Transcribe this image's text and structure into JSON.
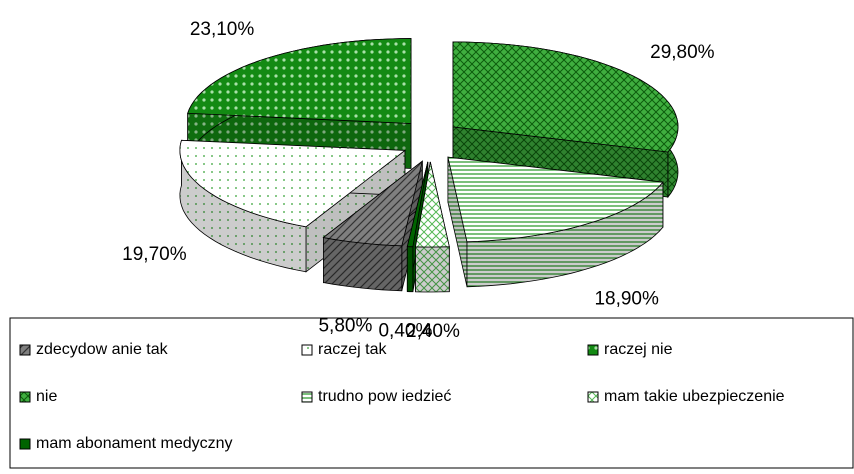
{
  "chart_data": {
    "type": "pie3d",
    "categories": [
      "zdecydow anie tak",
      "raczej tak",
      "raczej nie",
      "nie",
      "trudno pow iedzieć",
      "mam takie ubezpieczenie",
      "mam abonament medyczny"
    ],
    "values": [
      5.8,
      19.7,
      23.1,
      29.8,
      18.9,
      2.4,
      0.4
    ],
    "value_labels": [
      "5,80%",
      "19,70%",
      "23,10%",
      "29,80%",
      "18,90%",
      "2,40%",
      "0,40%"
    ],
    "colors": [
      "#7f7f7f",
      "#33a033",
      "#138a13",
      "#3fae3f",
      "#2e9a2e",
      "#55b855",
      "#006400"
    ],
    "legend": "bottom"
  }
}
